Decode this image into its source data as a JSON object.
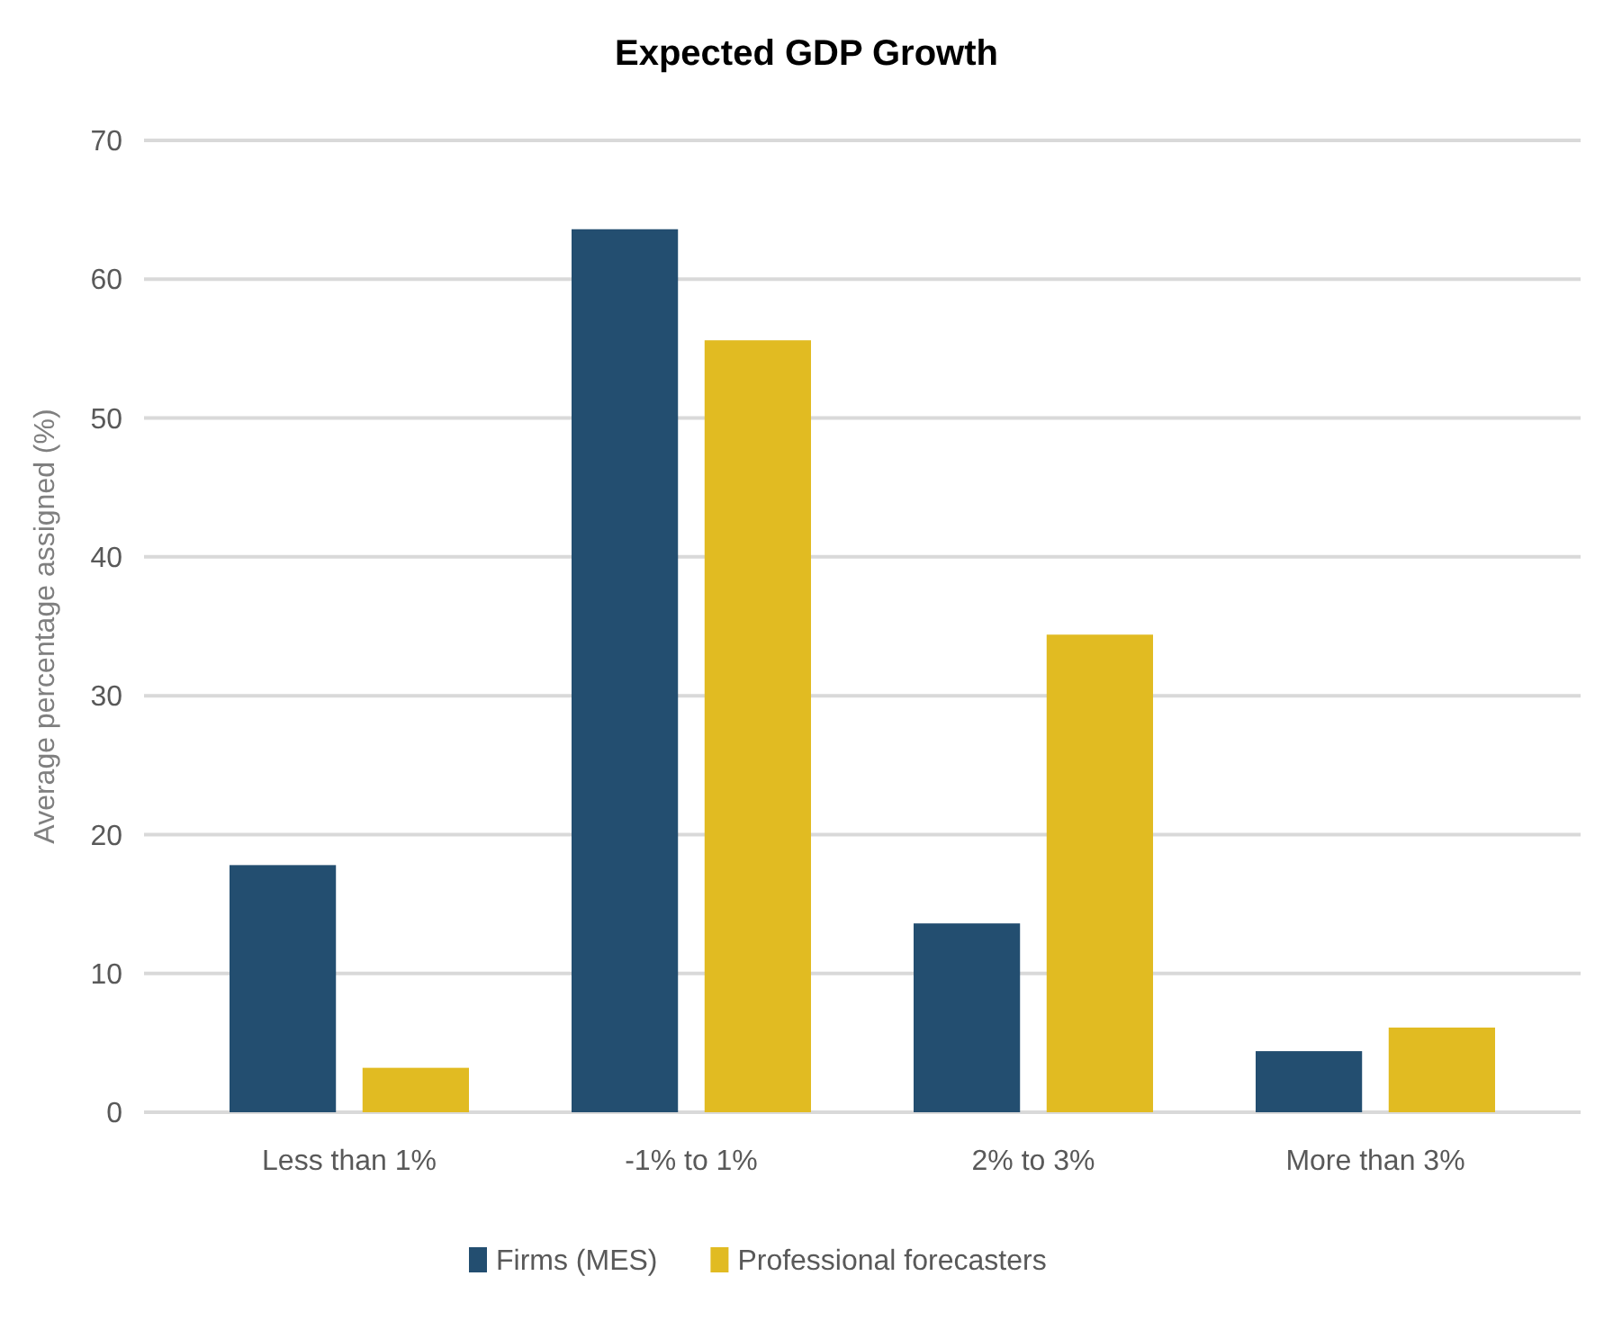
{
  "chart_data": {
    "type": "bar",
    "title": "Expected GDP Growth",
    "ylabel": "Average percentage assigned (%)",
    "categories": [
      "Less than 1%",
      "-1% to 1%",
      "2% to 3%",
      "More than 3%"
    ],
    "series": [
      {
        "name": "Firms (MES)",
        "color": "#234e70",
        "values": [
          17.8,
          63.6,
          13.6,
          4.4
        ]
      },
      {
        "name": "Professional forecasters",
        "color": "#e1bb22",
        "values": [
          3.2,
          55.6,
          34.4,
          6.1
        ]
      }
    ],
    "ylim": [
      0,
      70
    ],
    "yticks": [
      0,
      10,
      20,
      30,
      40,
      50,
      60,
      70
    ],
    "grid": "y",
    "legend": "bottom"
  }
}
